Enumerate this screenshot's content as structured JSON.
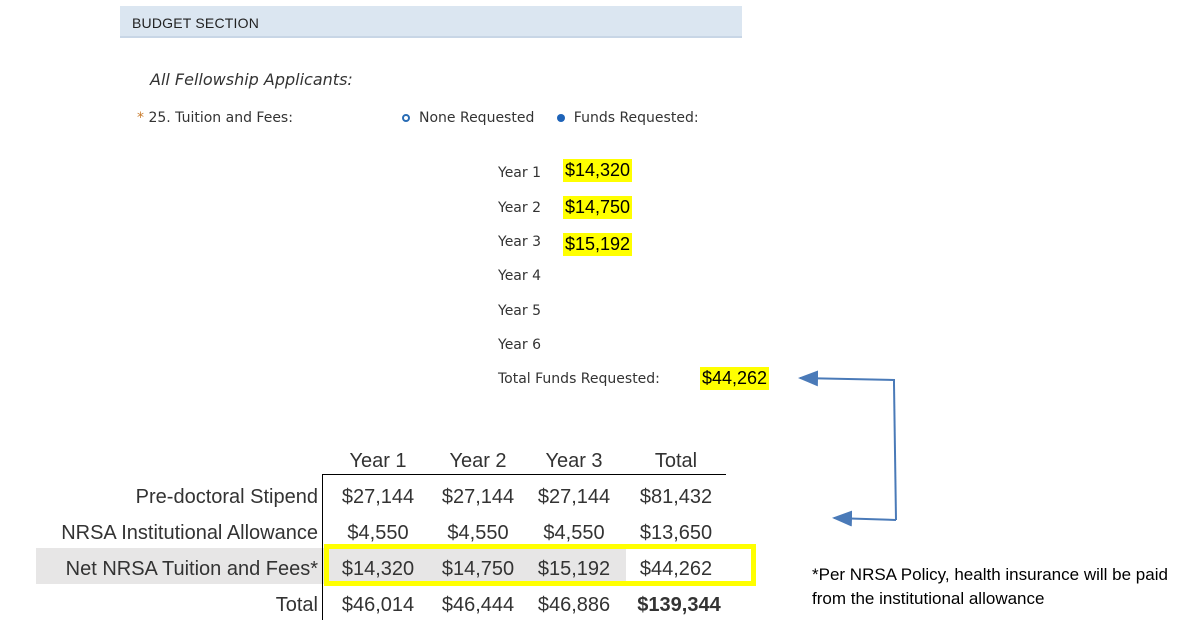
{
  "section": {
    "title": "BUDGET SECTION"
  },
  "subheading": "All Fellowship Applicants:",
  "question": {
    "required_marker": "*",
    "label": "25. Tuition and Fees:",
    "options": [
      {
        "label": "None Requested",
        "selected": false
      },
      {
        "label": "Funds Requested:",
        "selected": true
      }
    ]
  },
  "years": [
    {
      "label": "Year 1",
      "value": "$14,320"
    },
    {
      "label": "Year 2",
      "value": "$14,750"
    },
    {
      "label": "Year 3",
      "value": "$15,192"
    },
    {
      "label": "Year 4",
      "value": ""
    },
    {
      "label": "Year 5",
      "value": ""
    },
    {
      "label": "Year 6",
      "value": ""
    }
  ],
  "total_funds": {
    "label": "Total Funds Requested:",
    "value": "$44,262"
  },
  "table": {
    "headers": [
      "Year 1",
      "Year 2",
      "Year 3",
      "Total"
    ],
    "rows": [
      {
        "label": "Pre-doctoral Stipend",
        "values": [
          "$27,144",
          "$27,144",
          "$27,144",
          "$81,432"
        ]
      },
      {
        "label": "NRSA Institutional Allowance",
        "values": [
          "$4,550",
          "$4,550",
          "$4,550",
          "$13,650"
        ]
      },
      {
        "label": "Net NRSA Tuition and Fees*",
        "values": [
          "$14,320",
          "$14,750",
          "$15,192",
          "$44,262"
        ]
      },
      {
        "label": "Total",
        "values": [
          "$46,014",
          "$46,444",
          "$46,886",
          "$139,344"
        ]
      }
    ]
  },
  "footnote": "*Per NRSA Policy, health insurance will be paid from the institutional allowance",
  "colors": {
    "highlight": "#ffff00",
    "header_bg": "#dbe6f1",
    "arrow": "#4a7ab8"
  }
}
